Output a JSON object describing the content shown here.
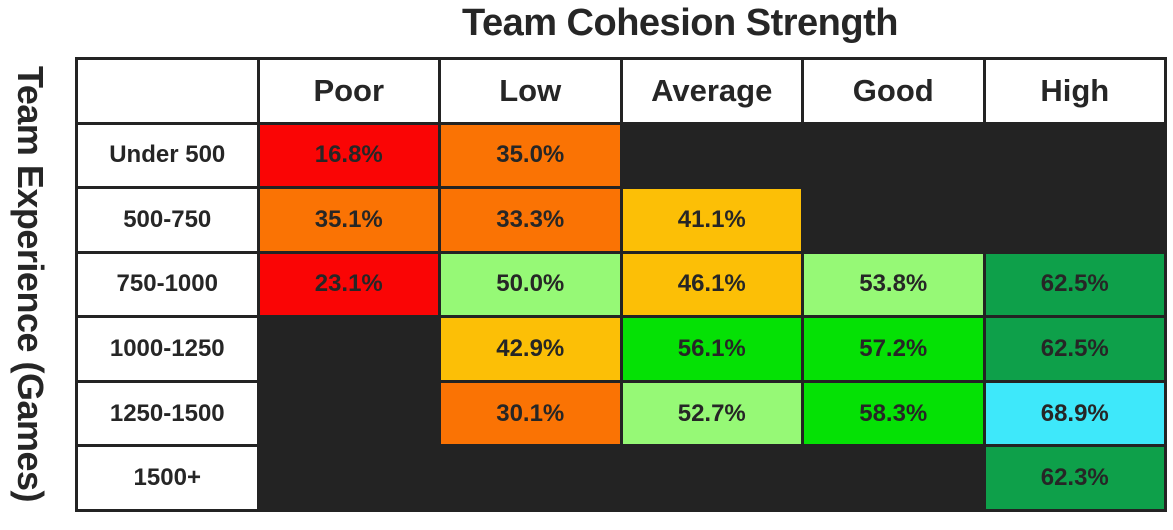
{
  "chart_data": {
    "type": "heatmap",
    "title": "Team Cohesion Strength",
    "x_axis_label": "Team Cohesion Strength",
    "y_axis_label": "Team Experience (Games)",
    "columns": [
      "Poor",
      "Low",
      "Average",
      "Good",
      "High"
    ],
    "rows": [
      "Under 500",
      "500-750",
      "750-1000",
      "1000-1250",
      "1250-1500",
      "1500+"
    ],
    "values_pct": [
      [
        16.8,
        35.0,
        null,
        null,
        null
      ],
      [
        35.1,
        33.3,
        41.1,
        null,
        null
      ],
      [
        23.1,
        50.0,
        46.1,
        53.8,
        62.5
      ],
      [
        null,
        42.9,
        56.1,
        57.2,
        62.5
      ],
      [
        null,
        30.1,
        52.7,
        58.3,
        68.9
      ],
      [
        null,
        null,
        null,
        null,
        62.3
      ]
    ],
    "cell_colors": [
      [
        "red",
        "orange",
        null,
        null,
        null
      ],
      [
        "orange",
        "orange",
        "amber",
        null,
        null
      ],
      [
        "red",
        "light_green",
        "amber",
        "light_green",
        "sea_green"
      ],
      [
        null,
        "amber",
        "bright_green",
        "bright_green",
        "sea_green"
      ],
      [
        null,
        "orange",
        "light_green",
        "bright_green",
        "cyan"
      ],
      [
        null,
        null,
        null,
        null,
        "sea_green"
      ]
    ],
    "palette": {
      "red": "#FA0505",
      "orange": "#FA7304",
      "amber": "#FCBF06",
      "light_green": "#96F976",
      "bright_green": "#05E105",
      "sea_green": "#0EA04A",
      "cyan": "#3EE8FA",
      "empty": "#232323"
    },
    "text_color": "#262626",
    "grid_color": "#232323",
    "background": "#FFFFFF",
    "legend": "none",
    "value_format": "one-decimal-percent"
  }
}
